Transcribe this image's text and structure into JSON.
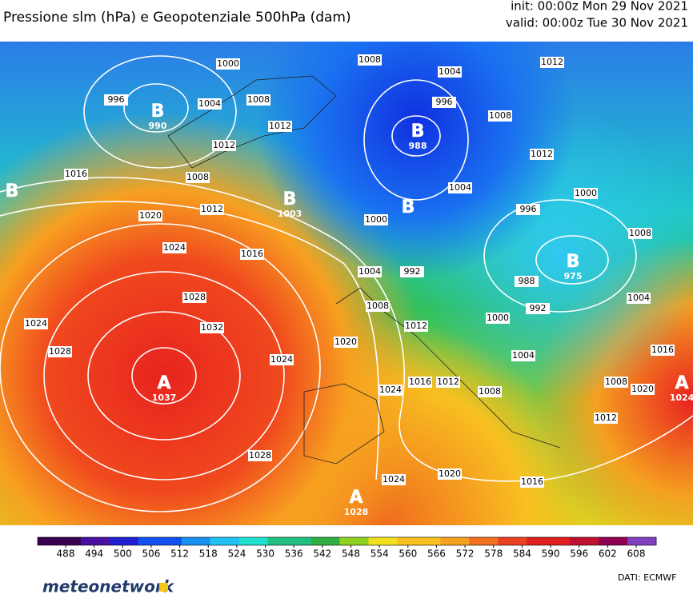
{
  "header": {
    "title": "Pressione slm (hPa) e Geopotenziale 500hPa (dam)",
    "init": "init: 00:00z Mon 29 Nov 2021",
    "valid": "valid: 00:00z Tue 30 Nov 2021"
  },
  "centers": [
    {
      "label": "B",
      "value": "990"
    },
    {
      "label": "B",
      "value": "988"
    },
    {
      "label": "B",
      "value": "1003"
    },
    {
      "label": "B",
      "value": "975"
    },
    {
      "label": "A",
      "value": "1037"
    },
    {
      "label": "A",
      "value": "1028"
    },
    {
      "label": "A",
      "value": "1024"
    },
    {
      "label": "B"
    },
    {
      "label": "B"
    }
  ],
  "isobar_labels": [
    "1000",
    "996",
    "1004",
    "1008",
    "1012",
    "1012",
    "1008",
    "1016",
    "1020",
    "1012",
    "1024",
    "1016",
    "1028",
    "1032",
    "1024",
    "1028",
    "1024",
    "1028",
    "1008",
    "1004",
    "996",
    "1008",
    "1012",
    "1012",
    "1004",
    "1000",
    "996",
    "1000",
    "1008",
    "992",
    "988",
    "992",
    "1004",
    "1008",
    "1012",
    "1000",
    "1020",
    "1004",
    "1004",
    "1016",
    "1008",
    "1020",
    "1024",
    "1016",
    "1012",
    "1008",
    "1012",
    "1024",
    "1020",
    "1016"
  ],
  "colorbar": {
    "ticks": [
      488,
      494,
      500,
      506,
      512,
      518,
      524,
      530,
      536,
      542,
      548,
      554,
      560,
      566,
      572,
      578,
      584,
      590,
      596,
      602,
      608
    ]
  },
  "footer": {
    "logo": "meteonetwork",
    "credit": "DATI:  ECMWF"
  }
}
